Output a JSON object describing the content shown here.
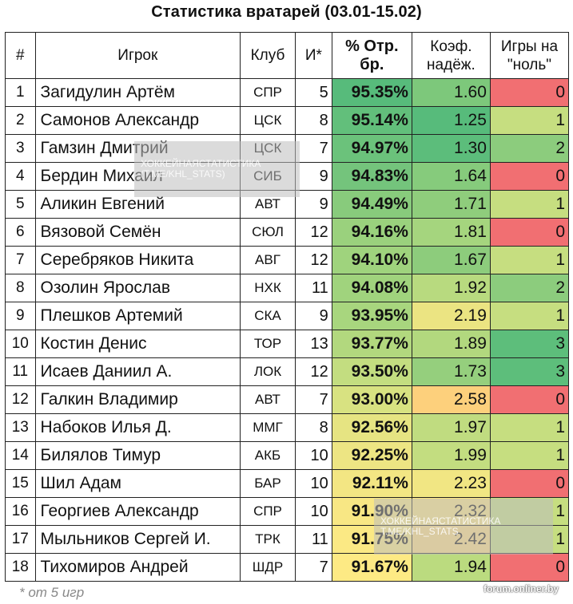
{
  "title": "Статистика вратарей (03.01-15.02)",
  "headers": {
    "num": "#",
    "player": "Игрок",
    "club": "Клуб",
    "games": "И*",
    "pct_line1": "% Отр.",
    "pct_line2": "бр.",
    "k_line1": "Коэф.",
    "k_line2": "надёж.",
    "z_line1": "Игры на",
    "z_line2": "\"ноль\""
  },
  "rows": [
    {
      "n": "1",
      "name": "Загидулин Артём",
      "club": "СПР",
      "g": "5",
      "pct": "95.35%",
      "k": "1.60",
      "z": "0",
      "c_pct": "#57bb7b",
      "c_k": "#7dc87b",
      "c_z": "#f16f72"
    },
    {
      "n": "2",
      "name": "Самонов Александр",
      "club": "ЦСК",
      "g": "8",
      "pct": "95.14%",
      "k": "1.25",
      "z": "1",
      "c_pct": "#62bf7b",
      "c_k": "#57bb7b",
      "c_z": "#c6de80"
    },
    {
      "n": "3",
      "name": "Гамзин Дмитрий",
      "club": "ЦСК",
      "g": "7",
      "pct": "94.97%",
      "k": "1.30",
      "z": "2",
      "c_pct": "#6bc27b",
      "c_k": "#5cbd7b",
      "c_z": "#8ccc7d"
    },
    {
      "n": "4",
      "name": "Бердин Михаил",
      "club": "СИБ",
      "g": "9",
      "pct": "94.83%",
      "k": "1.64",
      "z": "0",
      "c_pct": "#74c47c",
      "c_k": "#86cb7c",
      "c_z": "#f16f72"
    },
    {
      "n": "5",
      "name": "Аликин Евгений",
      "club": "АВТ",
      "g": "9",
      "pct": "94.49%",
      "k": "1.71",
      "z": "1",
      "c_pct": "#88cb7c",
      "c_k": "#8fcd7c",
      "c_z": "#c6de80"
    },
    {
      "n": "6",
      "name": "Вязовой Семён",
      "club": "СЮЛ",
      "g": "12",
      "pct": "94.16%",
      "k": "1.81",
      "z": "0",
      "c_pct": "#9ad17d",
      "c_k": "#a5d57e",
      "c_z": "#f16f72"
    },
    {
      "n": "7",
      "name": "Серебряков Никита",
      "club": "АВГ",
      "g": "12",
      "pct": "94.10%",
      "k": "1.67",
      "z": "1",
      "c_pct": "#9fd37d",
      "c_k": "#8dcc7c",
      "c_z": "#c6de80"
    },
    {
      "n": "8",
      "name": "Озолин Ярослав",
      "club": "НХК",
      "g": "11",
      "pct": "94.08%",
      "k": "1.92",
      "z": "2",
      "c_pct": "#a0d37d",
      "c_k": "#b8da7f",
      "c_z": "#8ccc7d"
    },
    {
      "n": "9",
      "name": "Плешков Артемий",
      "club": "СКА",
      "g": "9",
      "pct": "93.95%",
      "k": "2.19",
      "z": "1",
      "c_pct": "#a8d67e",
      "c_k": "#ebe482",
      "c_z": "#c6de80"
    },
    {
      "n": "10",
      "name": "Костин Денис",
      "club": "ТОР",
      "g": "13",
      "pct": "93.77%",
      "k": "1.89",
      "z": "3",
      "c_pct": "#b2d87e",
      "c_k": "#b2d87e",
      "c_z": "#5dbe7b"
    },
    {
      "n": "11",
      "name": "Исаев Даниил А.",
      "club": "ЛОК",
      "g": "12",
      "pct": "93.50%",
      "k": "1.73",
      "z": "3",
      "c_pct": "#c3dd80",
      "c_k": "#95cf7d",
      "c_z": "#5dbe7b"
    },
    {
      "n": "12",
      "name": "Галкин Владимир",
      "club": "АВТ",
      "g": "7",
      "pct": "93.00%",
      "k": "2.58",
      "z": "0",
      "c_pct": "#d8e281",
      "c_k": "#fdd07c",
      "c_z": "#f16f72"
    },
    {
      "n": "13",
      "name": "Набоков Илья Д.",
      "club": "ММГ",
      "g": "8",
      "pct": "92.56%",
      "k": "1.97",
      "z": "1",
      "c_pct": "#e6e482",
      "c_k": "#c0dc80",
      "c_z": "#c6de80"
    },
    {
      "n": "14",
      "name": "Билялов Тимур",
      "club": "АКБ",
      "g": "10",
      "pct": "92.25%",
      "k": "1.99",
      "z": "1",
      "c_pct": "#ede583",
      "c_k": "#c3dd80",
      "c_z": "#c6de80"
    },
    {
      "n": "15",
      "name": "Шил Адам",
      "club": "БАР",
      "g": "10",
      "pct": "92.11%",
      "k": "2.23",
      "z": "0",
      "c_pct": "#f3e683",
      "c_k": "#f1e683",
      "c_z": "#f16f72"
    },
    {
      "n": "16",
      "name": "Георгиев Александр",
      "club": "СПР",
      "g": "10",
      "pct": "91.90%",
      "k": "2.32",
      "z": "1",
      "c_pct": "#f8e784",
      "c_k": "#fbe484",
      "c_z": "#c6de80"
    },
    {
      "n": "17",
      "name": "Мыльников Сергей И.",
      "club": "ТРК",
      "g": "11",
      "pct": "91.75%",
      "k": "2.42",
      "z": "1",
      "c_pct": "#fbe984",
      "c_k": "#fddc82",
      "c_z": "#c6de80"
    },
    {
      "n": "18",
      "name": "Тихомиров Андрей",
      "club": "ШДР",
      "g": "7",
      "pct": "91.67%",
      "k": "1.94",
      "z": "0",
      "c_pct": "#fdea84",
      "c_k": "#bbdb7f",
      "c_z": "#f16f72"
    }
  ],
  "footnote": "* от 5 игр",
  "source": "forum.onliner.by",
  "watermark_line1": "ХОККЕЙНАЯСТАТИСТИКА",
  "watermark_line2": "(T.ME/KHL_STATS)",
  "watermark2_line1": "ХОККЕЙНАЯСТАТИСТИКА",
  "watermark2_line2": "T.ME/KHL_STATS"
}
